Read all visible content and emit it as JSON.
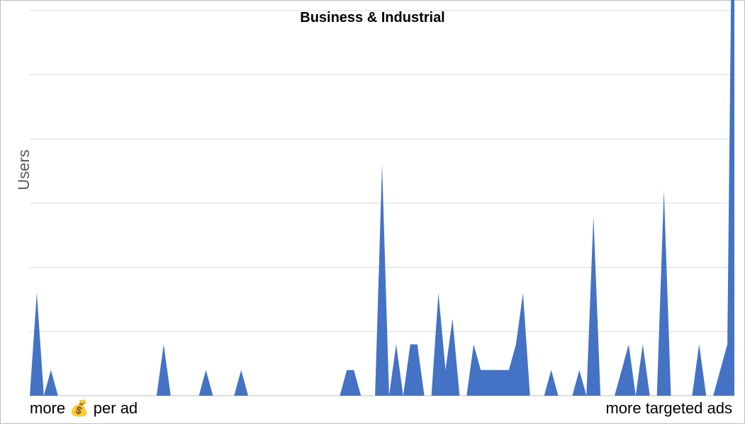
{
  "chart_data": {
    "type": "area",
    "title": "Business & Industrial",
    "ylabel": "Users",
    "x_label_left": "more",
    "x_label_left_emoji": "💰",
    "x_label_left_suffix": "per ad",
    "x_label_right": "more targeted ads",
    "grid": true,
    "legend": "none",
    "color": "#4472c4",
    "ylim": [
      0,
      6
    ],
    "values": [
      0,
      1.6,
      0,
      0.4,
      0,
      0,
      0,
      0,
      0,
      0,
      0,
      0,
      0,
      0,
      0,
      0,
      0,
      0,
      0,
      0.8,
      0,
      0,
      0,
      0,
      0,
      0.4,
      0,
      0,
      0,
      0,
      0.4,
      0,
      0,
      0,
      0,
      0,
      0,
      0,
      0,
      0,
      0,
      0,
      0,
      0,
      0,
      0.4,
      0.4,
      0,
      0,
      0,
      3.6,
      0,
      0.8,
      0,
      0.8,
      0.8,
      0,
      0,
      1.6,
      0.4,
      1.2,
      0,
      0,
      0.8,
      0.4,
      0.4,
      0.4,
      0.4,
      0.4,
      0.8,
      1.6,
      0,
      0,
      0,
      0.4,
      0,
      0,
      0,
      0.4,
      0,
      2.8,
      0,
      0,
      0,
      0.4,
      0.8,
      0,
      0.8,
      0,
      0,
      3.2,
      0,
      0,
      0,
      0,
      0.8,
      0,
      0,
      0.4,
      0.8,
      11.2
    ]
  }
}
